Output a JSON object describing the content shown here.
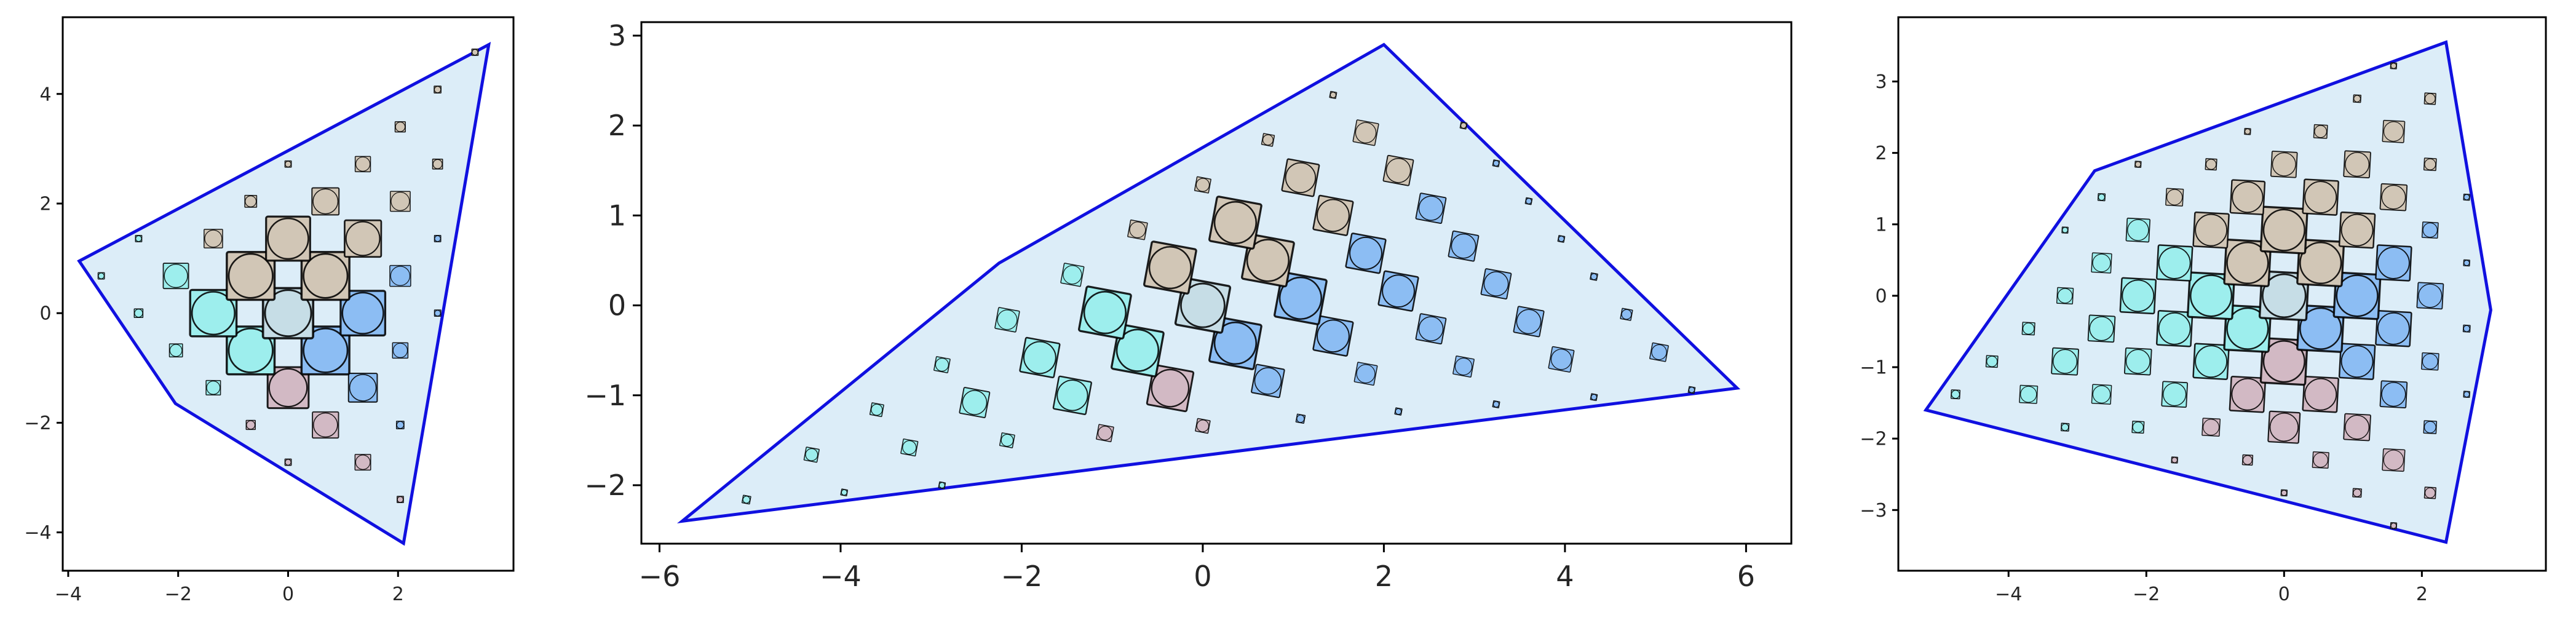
{
  "colors": {
    "hull_fill": "#dcedf8",
    "hull_edge": "#1010e0",
    "marker_edge": "#000000",
    "center": "#c6dde6",
    "cyan": "#9deeed",
    "blue": "#8cbdf3",
    "tan": "#d1c6b6",
    "mauve": "#d2b9c4"
  },
  "chart_data": [
    {
      "type": "scatter",
      "title": "",
      "xlabel": "",
      "ylabel": "",
      "xlim": [
        -4.1,
        4.1
      ],
      "ylim": [
        -4.7,
        5.4
      ],
      "xticks": [
        -4,
        -2,
        0,
        2
      ],
      "yticks": [
        -4,
        -2,
        0,
        2,
        4
      ],
      "tick_labels_x": [
        "−4",
        "−2",
        "0",
        "2"
      ],
      "tick_labels_y": [
        "−4",
        "−2",
        "0",
        "2",
        "4"
      ],
      "grid": false,
      "legend": "none",
      "marker": "rotated square with inner circle",
      "lattice": {
        "origin": [
          0,
          0
        ],
        "u": [
          0.68,
          0.68
        ],
        "v": [
          -0.68,
          0.68
        ],
        "range": [
          -9,
          9
        ]
      },
      "hull": [
        [
          -3.8,
          0.95
        ],
        [
          3.65,
          4.9
        ],
        [
          2.1,
          -4.2
        ],
        [
          -2.05,
          -1.65
        ]
      ]
    },
    {
      "type": "scatter",
      "title": "",
      "xlabel": "",
      "ylabel": "",
      "xlim": [
        -6.2,
        6.5
      ],
      "ylim": [
        -2.65,
        3.15
      ],
      "xticks": [
        -6,
        -4,
        -2,
        0,
        2,
        4,
        6
      ],
      "yticks": [
        -2,
        -1,
        0,
        1,
        2,
        3
      ],
      "tick_labels_x": [
        "−6",
        "−4",
        "−2",
        "0",
        "2",
        "4",
        "6"
      ],
      "tick_labels_y": [
        "−2",
        "−1",
        "0",
        "1",
        "2",
        "3"
      ],
      "grid": false,
      "legend": "none",
      "marker": "rotated square with inner circle",
      "lattice": {
        "origin": [
          0,
          0
        ],
        "u": [
          0.72,
          0.5
        ],
        "v": [
          -0.36,
          0.42
        ],
        "range": [
          -12,
          12
        ]
      },
      "hull": [
        [
          -5.75,
          -2.4
        ],
        [
          -2.25,
          0.47
        ],
        [
          2.0,
          2.9
        ],
        [
          5.9,
          -0.92
        ]
      ]
    },
    {
      "type": "scatter",
      "title": "",
      "xlabel": "",
      "ylabel": "",
      "xlim": [
        -5.6,
        3.8
      ],
      "ylim": [
        -3.85,
        3.9
      ],
      "xticks": [
        -4,
        -2,
        0,
        2
      ],
      "yticks": [
        -3,
        -2,
        -1,
        0,
        1,
        2,
        3
      ],
      "tick_labels_x": [
        "−4",
        "−2",
        "0",
        "2"
      ],
      "tick_labels_y": [
        "−3",
        "−2",
        "−1",
        "0",
        "1",
        "2",
        "3"
      ],
      "grid": false,
      "legend": "none",
      "marker": "rotated square with inner circle",
      "lattice": {
        "origin": [
          0,
          0
        ],
        "u": [
          0.53,
          0.46
        ],
        "v": [
          -0.53,
          0.46
        ],
        "range": [
          -12,
          12
        ]
      },
      "hull": [
        [
          -5.2,
          -1.6
        ],
        [
          -2.75,
          1.75
        ],
        [
          2.35,
          3.55
        ],
        [
          3.0,
          -0.2
        ],
        [
          2.35,
          -3.45
        ]
      ]
    }
  ]
}
